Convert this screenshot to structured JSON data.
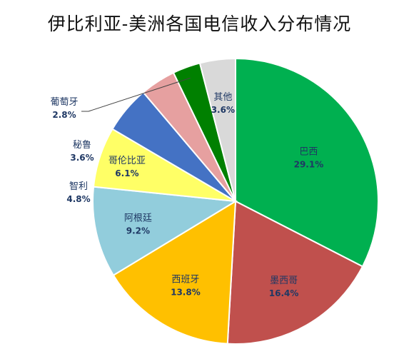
{
  "chart_data": {
    "type": "pie",
    "title": "伊比利亚-美洲各国电信收入分布情况",
    "slices": [
      {
        "label": "巴西",
        "value": 29.1,
        "value_label": "29.1%",
        "color": "#00b050"
      },
      {
        "label": "墨西哥",
        "value": 16.4,
        "value_label": "16.4%",
        "color": "#c0504d"
      },
      {
        "label": "西班牙",
        "value": 13.8,
        "value_label": "13.8%",
        "color": "#ffc000"
      },
      {
        "label": "阿根廷",
        "value": 9.2,
        "value_label": "9.2%",
        "color": "#92cddc"
      },
      {
        "label": "哥伦比亚",
        "value": 6.1,
        "value_label": "6.1%",
        "color": "#ffff66"
      },
      {
        "label": "智利",
        "value": 4.8,
        "value_label": "4.8%",
        "color": "#4472c4"
      },
      {
        "label": "秘鲁",
        "value": 3.6,
        "value_label": "3.6%",
        "color": "#e6a0a0"
      },
      {
        "label": "葡萄牙",
        "value": 2.8,
        "value_label": "2.8%",
        "color": "#008000"
      },
      {
        "label": "其他",
        "value": 3.6,
        "value_label": "3.6%",
        "color": "#d9d9d9"
      }
    ]
  }
}
